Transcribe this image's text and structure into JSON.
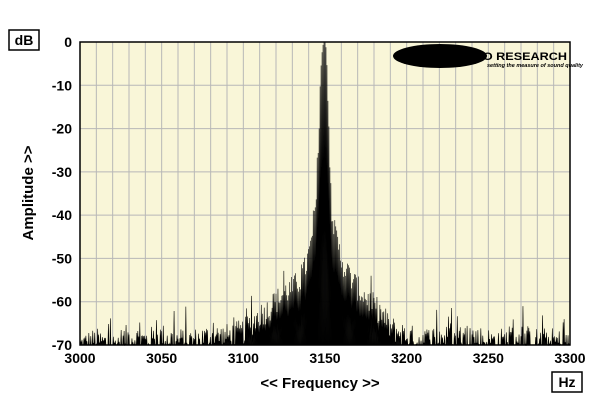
{
  "chart_data": {
    "type": "area",
    "title": "",
    "xlabel": "<< Frequency >>",
    "ylabel": "Amplitude >>",
    "x_unit": "Hz",
    "y_unit": "dB",
    "xlim": [
      3000,
      3300
    ],
    "ylim": [
      -70,
      0
    ],
    "xticks": [
      3000,
      3050,
      3100,
      3150,
      3200,
      3250,
      3300
    ],
    "yticks": [
      0,
      -10,
      -20,
      -30,
      -40,
      -50,
      -60,
      -70
    ],
    "grid": true,
    "plot_background": "#f9f6d8",
    "fill_color": "#000000",
    "series": [
      {
        "x": [
          3000,
          3010,
          3020,
          3030,
          3040,
          3050,
          3060,
          3070,
          3080,
          3090,
          3100,
          3105,
          3110,
          3115,
          3120,
          3125,
          3130,
          3135,
          3138,
          3140,
          3142,
          3144,
          3146,
          3147,
          3148,
          3149,
          3150,
          3151,
          3152,
          3153,
          3154,
          3156,
          3158,
          3160,
          3162,
          3165,
          3170,
          3175,
          3180,
          3185,
          3190,
          3195,
          3200,
          3210,
          3220,
          3230,
          3240,
          3250,
          3260,
          3270,
          3280,
          3290,
          3300
        ],
        "y": [
          -68,
          -67,
          -68,
          -66,
          -67,
          -66,
          -67,
          -67,
          -66,
          -66,
          -65,
          -63,
          -61,
          -60,
          -58,
          -56,
          -55,
          -53,
          -50,
          -47,
          -44,
          -38,
          -25,
          -10,
          -2,
          0,
          0,
          -3,
          -15,
          -28,
          -36,
          -42,
          -45,
          -48,
          -50,
          -52,
          -55,
          -57,
          -59,
          -61,
          -64,
          -65,
          -66,
          -67,
          -66,
          -67,
          -66,
          -67,
          -67,
          -66,
          -67,
          -67,
          -68
        ]
      }
    ]
  },
  "logo": {
    "name_text": "MILLER AUDIO RESEARCH",
    "tagline": "setting the measure of sound quality"
  }
}
